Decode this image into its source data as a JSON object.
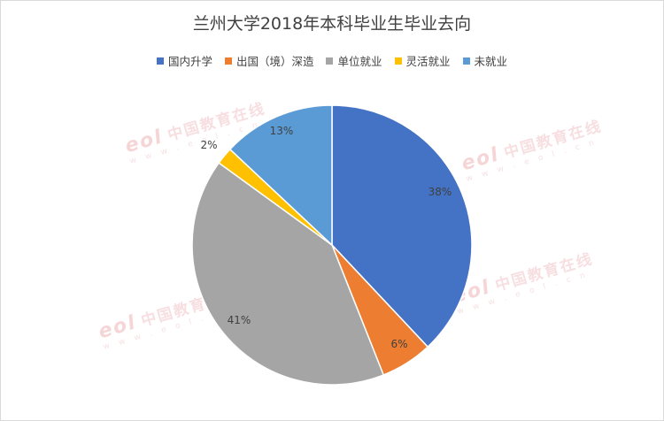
{
  "chart_data": {
    "type": "pie",
    "title": "兰州大学2018年本科毕业生毕业去向",
    "legend_position": "top",
    "slices": [
      {
        "label": "国内升学",
        "value": 38,
        "color": "#4472C4"
      },
      {
        "label": "出国（境）深造",
        "value": 6,
        "color": "#ED7D31"
      },
      {
        "label": "单位就业",
        "value": 41,
        "color": "#A5A5A5"
      },
      {
        "label": "灵活就业",
        "value": 2,
        "color": "#FFC000"
      },
      {
        "label": "未就业",
        "value": 13,
        "color": "#5B9BD5"
      }
    ]
  },
  "watermark": {
    "brand": "中国教育在线",
    "site": "w w w . e o l . c n",
    "logo": "eol"
  }
}
